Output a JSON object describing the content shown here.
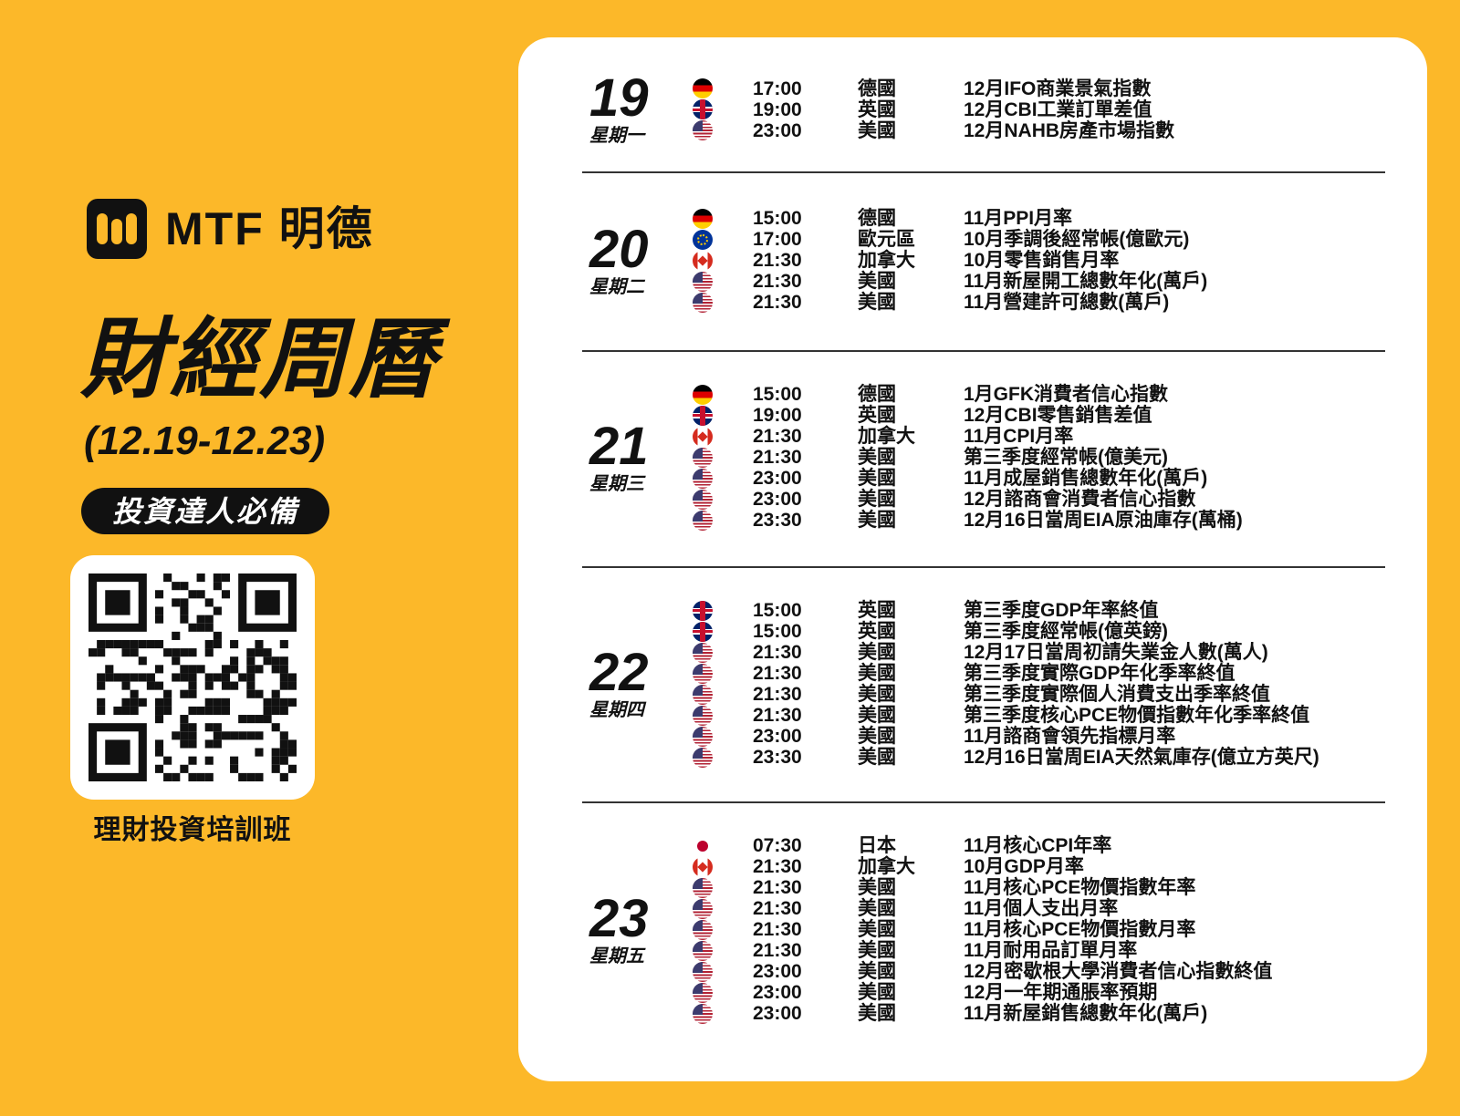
{
  "brand": {
    "name": "MTF 明德"
  },
  "title": "財經周曆",
  "date_range": "(12.19-12.23)",
  "badge": "投資達人必備",
  "qr_caption": "理財投資培訓班",
  "colors": {
    "background": "#FCB829",
    "card": "#FFFFFF",
    "text": "#111111"
  },
  "days": [
    {
      "day": "19",
      "weekday": "星期一",
      "events": [
        {
          "flag": "germany",
          "time": "17:00",
          "country": "德國",
          "event": "12月IFO商業景氣指數"
        },
        {
          "flag": "uk",
          "time": "19:00",
          "country": "英國",
          "event": "12月CBI工業訂單差值"
        },
        {
          "flag": "us",
          "time": "23:00",
          "country": "美國",
          "event": "12月NAHB房產市場指數"
        }
      ]
    },
    {
      "day": "20",
      "weekday": "星期二",
      "events": [
        {
          "flag": "germany",
          "time": "15:00",
          "country": "德國",
          "event": "11月PPI月率"
        },
        {
          "flag": "eu",
          "time": "17:00",
          "country": "歐元區",
          "event": "10月季調後經常帳(億歐元)"
        },
        {
          "flag": "canada",
          "time": "21:30",
          "country": "加拿大",
          "event": "10月零售銷售月率"
        },
        {
          "flag": "us",
          "time": "21:30",
          "country": "美國",
          "event": "11月新屋開工總數年化(萬戶)"
        },
        {
          "flag": "us",
          "time": "21:30",
          "country": "美國",
          "event": "11月營建許可總數(萬戶)"
        }
      ]
    },
    {
      "day": "21",
      "weekday": "星期三",
      "events": [
        {
          "flag": "germany",
          "time": "15:00",
          "country": "德國",
          "event": "1月GFK消費者信心指數"
        },
        {
          "flag": "uk",
          "time": "19:00",
          "country": "英國",
          "event": "12月CBI零售銷售差值"
        },
        {
          "flag": "canada",
          "time": "21:30",
          "country": "加拿大",
          "event": "11月CPI月率"
        },
        {
          "flag": "us",
          "time": "21:30",
          "country": "美國",
          "event": "第三季度經常帳(億美元)"
        },
        {
          "flag": "us",
          "time": "23:00",
          "country": "美國",
          "event": "11月成屋銷售總數年化(萬戶)"
        },
        {
          "flag": "us",
          "time": "23:00",
          "country": "美國",
          "event": "12月諮商會消費者信心指數"
        },
        {
          "flag": "us",
          "time": "23:30",
          "country": "美國",
          "event": "12月16日當周EIA原油庫存(萬桶)"
        }
      ]
    },
    {
      "day": "22",
      "weekday": "星期四",
      "events": [
        {
          "flag": "uk",
          "time": "15:00",
          "country": "英國",
          "event": "第三季度GDP年率終值"
        },
        {
          "flag": "uk",
          "time": "15:00",
          "country": "英國",
          "event": "第三季度經常帳(億英鎊)"
        },
        {
          "flag": "us",
          "time": "21:30",
          "country": "美國",
          "event": "12月17日當周初請失業金人數(萬人)"
        },
        {
          "flag": "us",
          "time": "21:30",
          "country": "美國",
          "event": "第三季度實際GDP年化季率終值"
        },
        {
          "flag": "us",
          "time": "21:30",
          "country": "美國",
          "event": "第三季度實際個人消費支出季率終值"
        },
        {
          "flag": "us",
          "time": "21:30",
          "country": "美國",
          "event": "第三季度核心PCE物價指數年化季率終值"
        },
        {
          "flag": "us",
          "time": "23:00",
          "country": "美國",
          "event": "11月諮商會領先指標月率"
        },
        {
          "flag": "us",
          "time": "23:30",
          "country": "美國",
          "event": "12月16日當周EIA天然氣庫存(億立方英尺)"
        }
      ]
    },
    {
      "day": "23",
      "weekday": "星期五",
      "events": [
        {
          "flag": "japan",
          "time": "07:30",
          "country": "日本",
          "event": "11月核心CPI年率"
        },
        {
          "flag": "canada",
          "time": "21:30",
          "country": "加拿大",
          "event": "10月GDP月率"
        },
        {
          "flag": "us",
          "time": "21:30",
          "country": "美國",
          "event": "11月核心PCE物價指數年率"
        },
        {
          "flag": "us",
          "time": "21:30",
          "country": "美國",
          "event": "11月個人支出月率"
        },
        {
          "flag": "us",
          "time": "21:30",
          "country": "美國",
          "event": "11月核心PCE物價指數月率"
        },
        {
          "flag": "us",
          "time": "21:30",
          "country": "美國",
          "event": "11月耐用品訂單月率"
        },
        {
          "flag": "us",
          "time": "23:00",
          "country": "美國",
          "event": "12月密歇根大學消費者信心指數終值"
        },
        {
          "flag": "us",
          "time": "23:00",
          "country": "美國",
          "event": "12月一年期通脹率預期"
        },
        {
          "flag": "us",
          "time": "23:00",
          "country": "美國",
          "event": "11月新屋銷售總數年化(萬戶)"
        }
      ]
    }
  ]
}
